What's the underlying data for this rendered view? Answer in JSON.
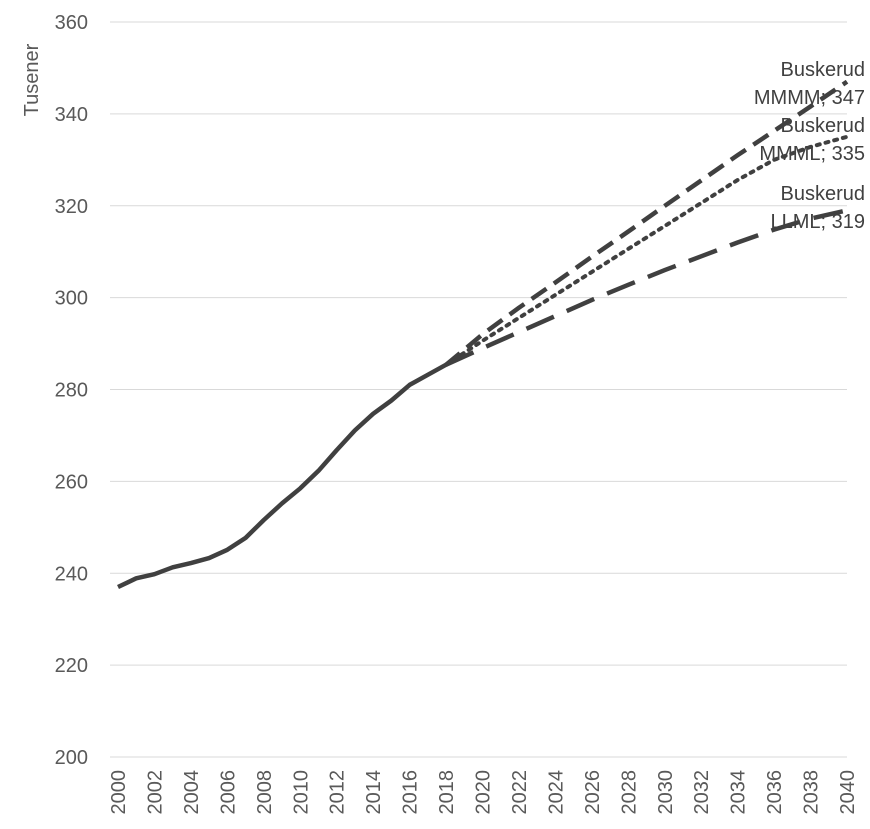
{
  "chart_data": {
    "type": "line",
    "title": "",
    "xlabel": "",
    "ylabel": "Tusener",
    "ylim": [
      200,
      360
    ],
    "yticks": [
      200,
      220,
      240,
      260,
      280,
      300,
      320,
      340,
      360
    ],
    "xlim": [
      2000,
      2040
    ],
    "xticks": [
      2000,
      2002,
      2004,
      2006,
      2008,
      2010,
      2012,
      2014,
      2016,
      2018,
      2020,
      2022,
      2024,
      2026,
      2028,
      2030,
      2032,
      2034,
      2036,
      2038,
      2040
    ],
    "grid": true,
    "legend": "none",
    "series": [
      {
        "line_style": "solid",
        "color": "#404040",
        "points": [
          [
            2000,
            237
          ],
          [
            2001,
            238.9
          ],
          [
            2002,
            239.8
          ],
          [
            2003,
            241.3
          ],
          [
            2004,
            242.2
          ],
          [
            2005,
            243.3
          ],
          [
            2006,
            245.1
          ],
          [
            2007,
            247.7
          ],
          [
            2008,
            251.6
          ],
          [
            2009,
            255.2
          ],
          [
            2010,
            258.5
          ],
          [
            2011,
            262.3
          ],
          [
            2012,
            266.8
          ],
          [
            2013,
            271.1
          ],
          [
            2014,
            274.7
          ],
          [
            2015,
            277.6
          ],
          [
            2016,
            281
          ],
          [
            2017,
            283.2
          ],
          [
            2018,
            285.4
          ]
        ]
      },
      {
        "line_style": "dashed",
        "color": "#404040",
        "label_lines": [
          "Buskerud",
          "MMMM; 347"
        ],
        "points": [
          [
            2018,
            285.4
          ],
          [
            2020,
            292
          ],
          [
            2022,
            297.8
          ],
          [
            2024,
            303.3
          ],
          [
            2026,
            308.9
          ],
          [
            2028,
            314.4
          ],
          [
            2030,
            320
          ],
          [
            2032,
            325.5
          ],
          [
            2034,
            331
          ],
          [
            2036,
            336.3
          ],
          [
            2038,
            341.6
          ],
          [
            2040,
            347
          ]
        ]
      },
      {
        "line_style": "dotted",
        "color": "#404040",
        "label_lines": [
          "Buskerud",
          "MMML; 335"
        ],
        "points": [
          [
            2018,
            285.4
          ],
          [
            2020,
            290.6
          ],
          [
            2022,
            295.6
          ],
          [
            2024,
            300.6
          ],
          [
            2026,
            305.6
          ],
          [
            2028,
            310.6
          ],
          [
            2030,
            315.6
          ],
          [
            2032,
            320.6
          ],
          [
            2034,
            325.6
          ],
          [
            2036,
            330
          ],
          [
            2038,
            332.8
          ],
          [
            2040,
            335
          ]
        ]
      },
      {
        "line_style": "longdash",
        "color": "#404040",
        "label_lines": [
          "Buskerud",
          "LLML; 319"
        ],
        "points": [
          [
            2018,
            285.4
          ],
          [
            2020,
            289
          ],
          [
            2022,
            292.5
          ],
          [
            2024,
            296
          ],
          [
            2026,
            299.5
          ],
          [
            2028,
            302.8
          ],
          [
            2030,
            306
          ],
          [
            2032,
            309
          ],
          [
            2034,
            312
          ],
          [
            2036,
            314.8
          ],
          [
            2038,
            317.2
          ],
          [
            2040,
            319
          ]
        ]
      }
    ]
  }
}
